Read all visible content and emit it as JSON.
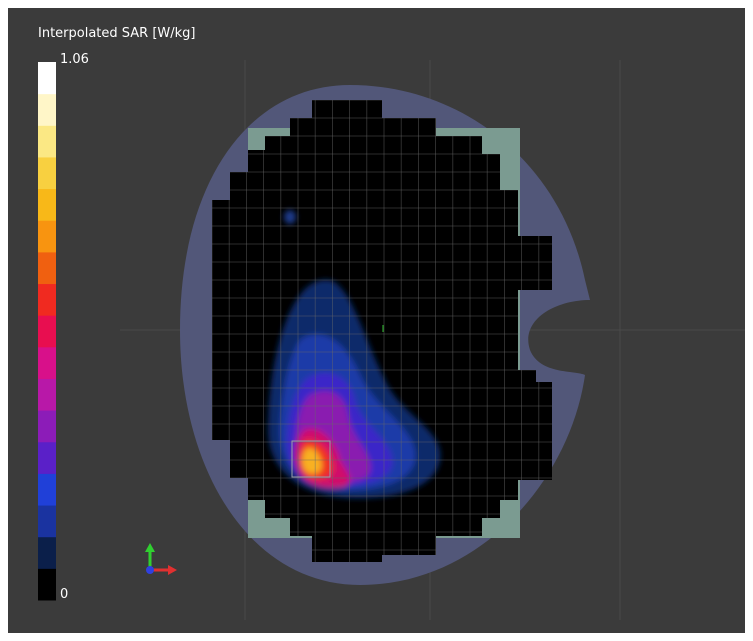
{
  "colorbar": {
    "title": "Interpolated SAR [W/kg]",
    "max_label": "1.06",
    "min_label": "0"
  }
}
